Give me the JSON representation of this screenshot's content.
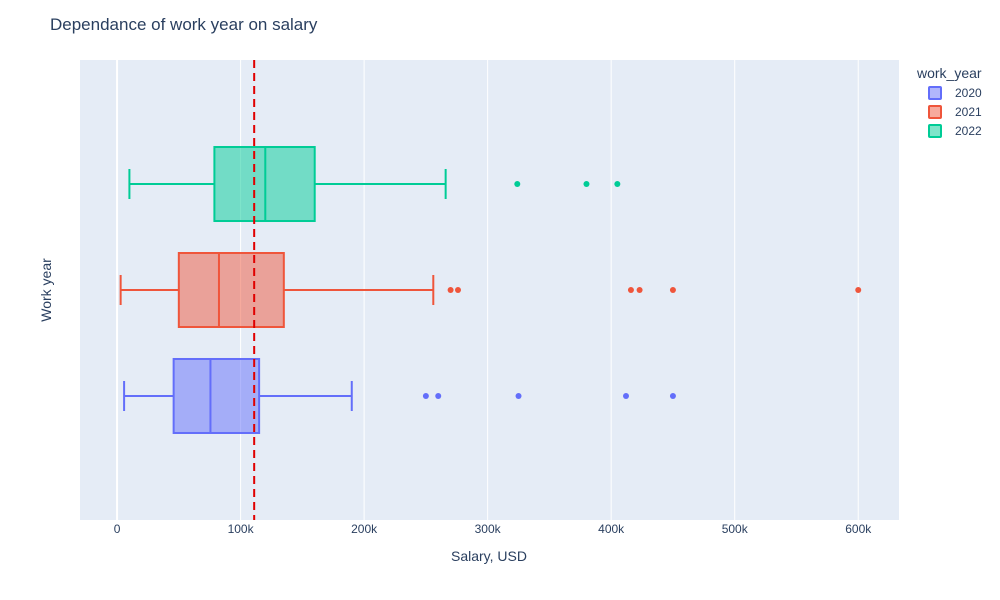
{
  "chart_data": {
    "type": "box",
    "orientation": "horizontal",
    "title": "Dependance of work year on salary",
    "xlabel": "Salary, USD",
    "ylabel": "Work year",
    "xlim": [
      -30000,
      633000
    ],
    "x_ticks": [
      0,
      100000,
      200000,
      300000,
      400000,
      500000,
      600000
    ],
    "x_tick_labels": [
      "0",
      "100k",
      "200k",
      "300k",
      "400k",
      "500k",
      "600k"
    ],
    "grid": true,
    "legend": {
      "title": "work_year",
      "placement": "top-right"
    },
    "reference_line": {
      "x": 111000,
      "color": "#e00000",
      "style": "dashed"
    },
    "series": [
      {
        "name": "2020",
        "color": "#636efa",
        "fill": "rgba(99,110,250,0.5)",
        "min": 5700,
        "q1": 45800,
        "median": 75600,
        "q3": 115000,
        "max": 190000,
        "outliers": [
          250000,
          260000,
          325000,
          412000,
          450000
        ]
      },
      {
        "name": "2021",
        "color": "#ef553b",
        "fill": "rgba(239,85,59,0.5)",
        "min": 2900,
        "q1": 50000,
        "median": 82500,
        "q3": 135000,
        "max": 256000,
        "outliers": [
          270000,
          276000,
          416000,
          423000,
          450000,
          600000
        ]
      },
      {
        "name": "2022",
        "color": "#00cc96",
        "fill": "rgba(0,204,150,0.5)",
        "min": 10000,
        "q1": 78800,
        "median": 120000,
        "q3": 160000,
        "max": 266000,
        "outliers": [
          324000,
          380000,
          405000
        ]
      }
    ]
  }
}
